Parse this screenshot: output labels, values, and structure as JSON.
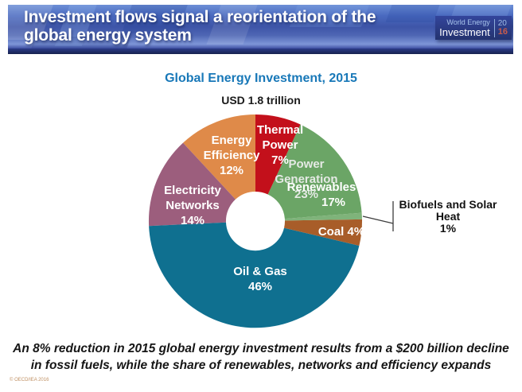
{
  "header": {
    "title_line1": "Investment flows signal a reorientation of the",
    "title_line2": "global energy system",
    "logo": {
      "brand_top": "World Energy",
      "brand_bottom": "Investment",
      "year_top": "20",
      "year_bottom": "16"
    }
  },
  "chart": {
    "title": "Global Energy Investment, 2015",
    "subtitle": "USD 1.8 trillion"
  },
  "chart_data": {
    "type": "pie",
    "title": "Global Energy Investment, 2015",
    "subtitle": "USD 1.8 trillion",
    "donut": true,
    "start_angle_deg": 0,
    "direction": "clockwise",
    "segments": [
      {
        "name": "Thermal Power",
        "value_pct": 7,
        "color": "#c3101b",
        "lines": [
          "Thermal",
          "Power",
          "7%"
        ]
      },
      {
        "name": "Renewables",
        "value_pct": 17,
        "color": "#6ba566",
        "lines": [
          "Renewables",
          "17%"
        ]
      },
      {
        "name": "Biofuels and Solar Heat",
        "value_pct": 1,
        "color": "#7fb37a",
        "lines": [
          "Biofuels and Solar",
          "Heat",
          "1%"
        ]
      },
      {
        "name": "Coal",
        "value_pct": 4,
        "color": "#a85d29",
        "lines": [
          "Coal 4%"
        ]
      },
      {
        "name": "Oil & Gas",
        "value_pct": 46,
        "color": "#0f7090",
        "lines": [
          "Oil & Gas",
          "46%"
        ]
      },
      {
        "name": "Electricity Networks",
        "value_pct": 14,
        "color": "#9c5e7d",
        "lines": [
          "Electricity",
          "Networks",
          "14%"
        ]
      },
      {
        "name": "Energy Efficiency",
        "value_pct": 12,
        "color": "#df8a49",
        "lines": [
          "Energy",
          "Efficiency",
          "12%"
        ]
      }
    ],
    "overlay_label": {
      "lines": [
        "Power",
        "Generation",
        "23%"
      ]
    }
  },
  "footer": {
    "line1": "An 8% reduction in 2015 global energy investment results from a $200 billion decline",
    "line2": "in fossil fuels, while the share of renewables, networks and efficiency expands",
    "copyright": "© OECD/IEA 2016"
  }
}
